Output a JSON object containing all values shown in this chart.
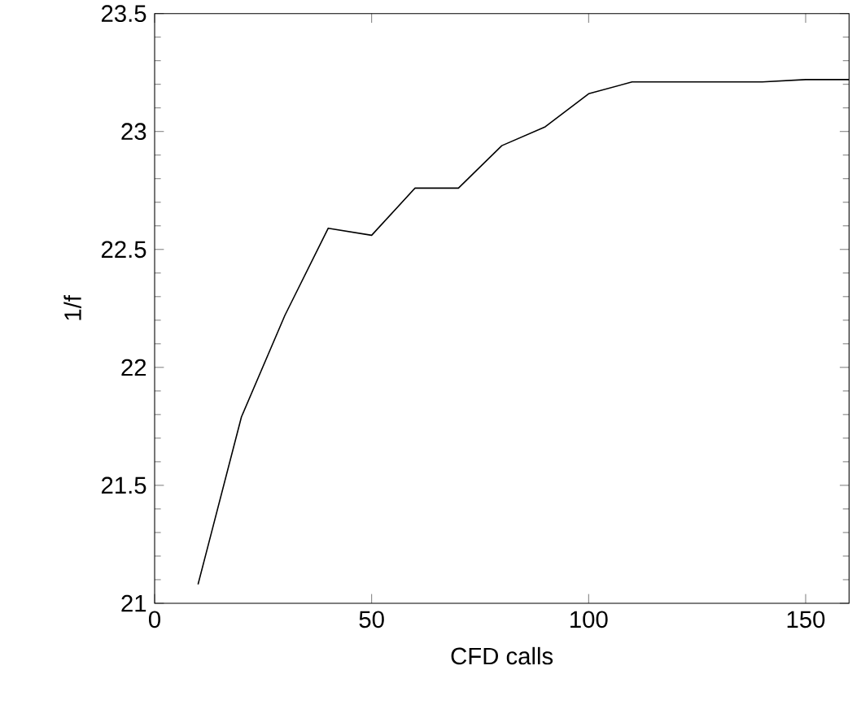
{
  "chart_data": {
    "type": "line",
    "xlabel": "CFD calls",
    "ylabel": "1/f",
    "x": [
      10,
      20,
      30,
      40,
      50,
      60,
      70,
      80,
      90,
      100,
      110,
      120,
      130,
      140,
      150,
      160
    ],
    "values": [
      21.08,
      21.79,
      22.22,
      22.59,
      22.56,
      22.76,
      22.76,
      22.94,
      23.02,
      23.16,
      23.21,
      23.21,
      23.21,
      23.21,
      23.22,
      23.22
    ],
    "color": "#000000",
    "xlim": [
      0,
      160
    ],
    "ylim": [
      21,
      23.5
    ],
    "xticks": [
      0,
      50,
      100,
      150
    ],
    "yticks": [
      21,
      21.5,
      22,
      22.5,
      23,
      23.5
    ],
    "grid": false,
    "marker": "none",
    "line_style": "solid"
  }
}
